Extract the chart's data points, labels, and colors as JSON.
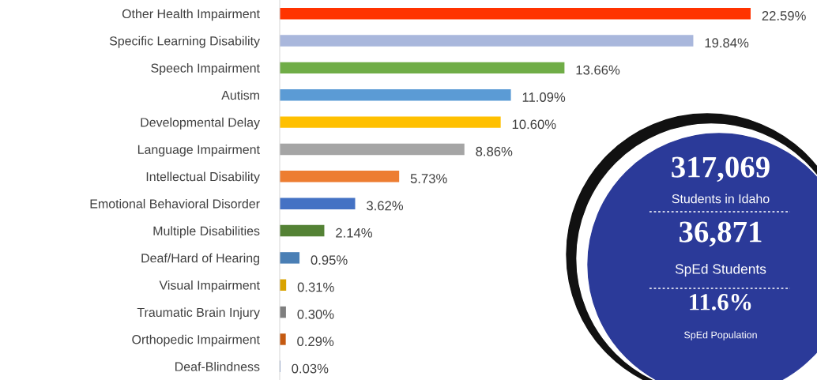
{
  "chart_data": {
    "type": "bar",
    "orientation": "horizontal",
    "categories": [
      "Other Health Impairment",
      "Specific Learning Disability",
      "Speech Impairment",
      "Autism",
      "Developmental Delay",
      "Language Impairment",
      "Intellectual Disability",
      "Emotional Behavioral Disorder",
      "Multiple Disabilities",
      "Deaf/Hard of Hearing",
      "Visual Impairment",
      "Traumatic Brain Injury",
      "Orthopedic Impairment",
      "Deaf-Blindness"
    ],
    "values": [
      22.59,
      19.84,
      13.66,
      11.09,
      10.6,
      8.86,
      5.73,
      3.62,
      2.14,
      0.95,
      0.31,
      0.3,
      0.29,
      0.03
    ],
    "value_labels": [
      "22.59%",
      "19.84%",
      "13.66%",
      "11.09%",
      "10.60%",
      "8.86%",
      "5.73%",
      "3.62%",
      "2.14%",
      "0.95%",
      "0.31%",
      "0.30%",
      "0.29%",
      "0.03%"
    ],
    "colors": [
      "#ff3300",
      "#a9b7dc",
      "#70ad47",
      "#5b9bd5",
      "#ffc000",
      "#a5a5a5",
      "#ed7d31",
      "#4472c4",
      "#548235",
      "#4a7fb5",
      "#d9a300",
      "#7f7f7f",
      "#c55a11",
      "#2f55a4"
    ],
    "annotations": [
      "317,069",
      "Students in Idaho",
      "36,871",
      "SpEd Students",
      "11.6%",
      "SpEd Population"
    ],
    "data_labels": false
  }
}
